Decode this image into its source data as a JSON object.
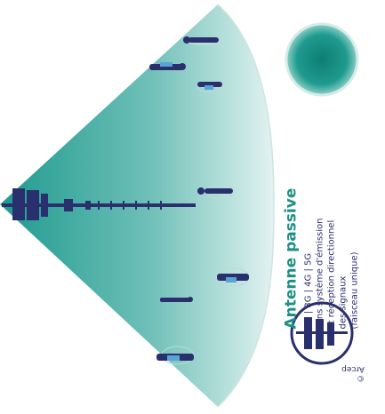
{
  "title": "Antenne passive",
  "bands": "2G | 3G | 4G | 5G",
  "description_lines": [
    "sans système d'émission",
    "et réception directionnel",
    "des signaux",
    "(faisceau unique)"
  ],
  "credit": "© Arcep",
  "colors": {
    "teal": "#1f9a8f",
    "teal_light": "#d9efec",
    "navy": "#2a2f6e",
    "title": "#1f8f84"
  }
}
